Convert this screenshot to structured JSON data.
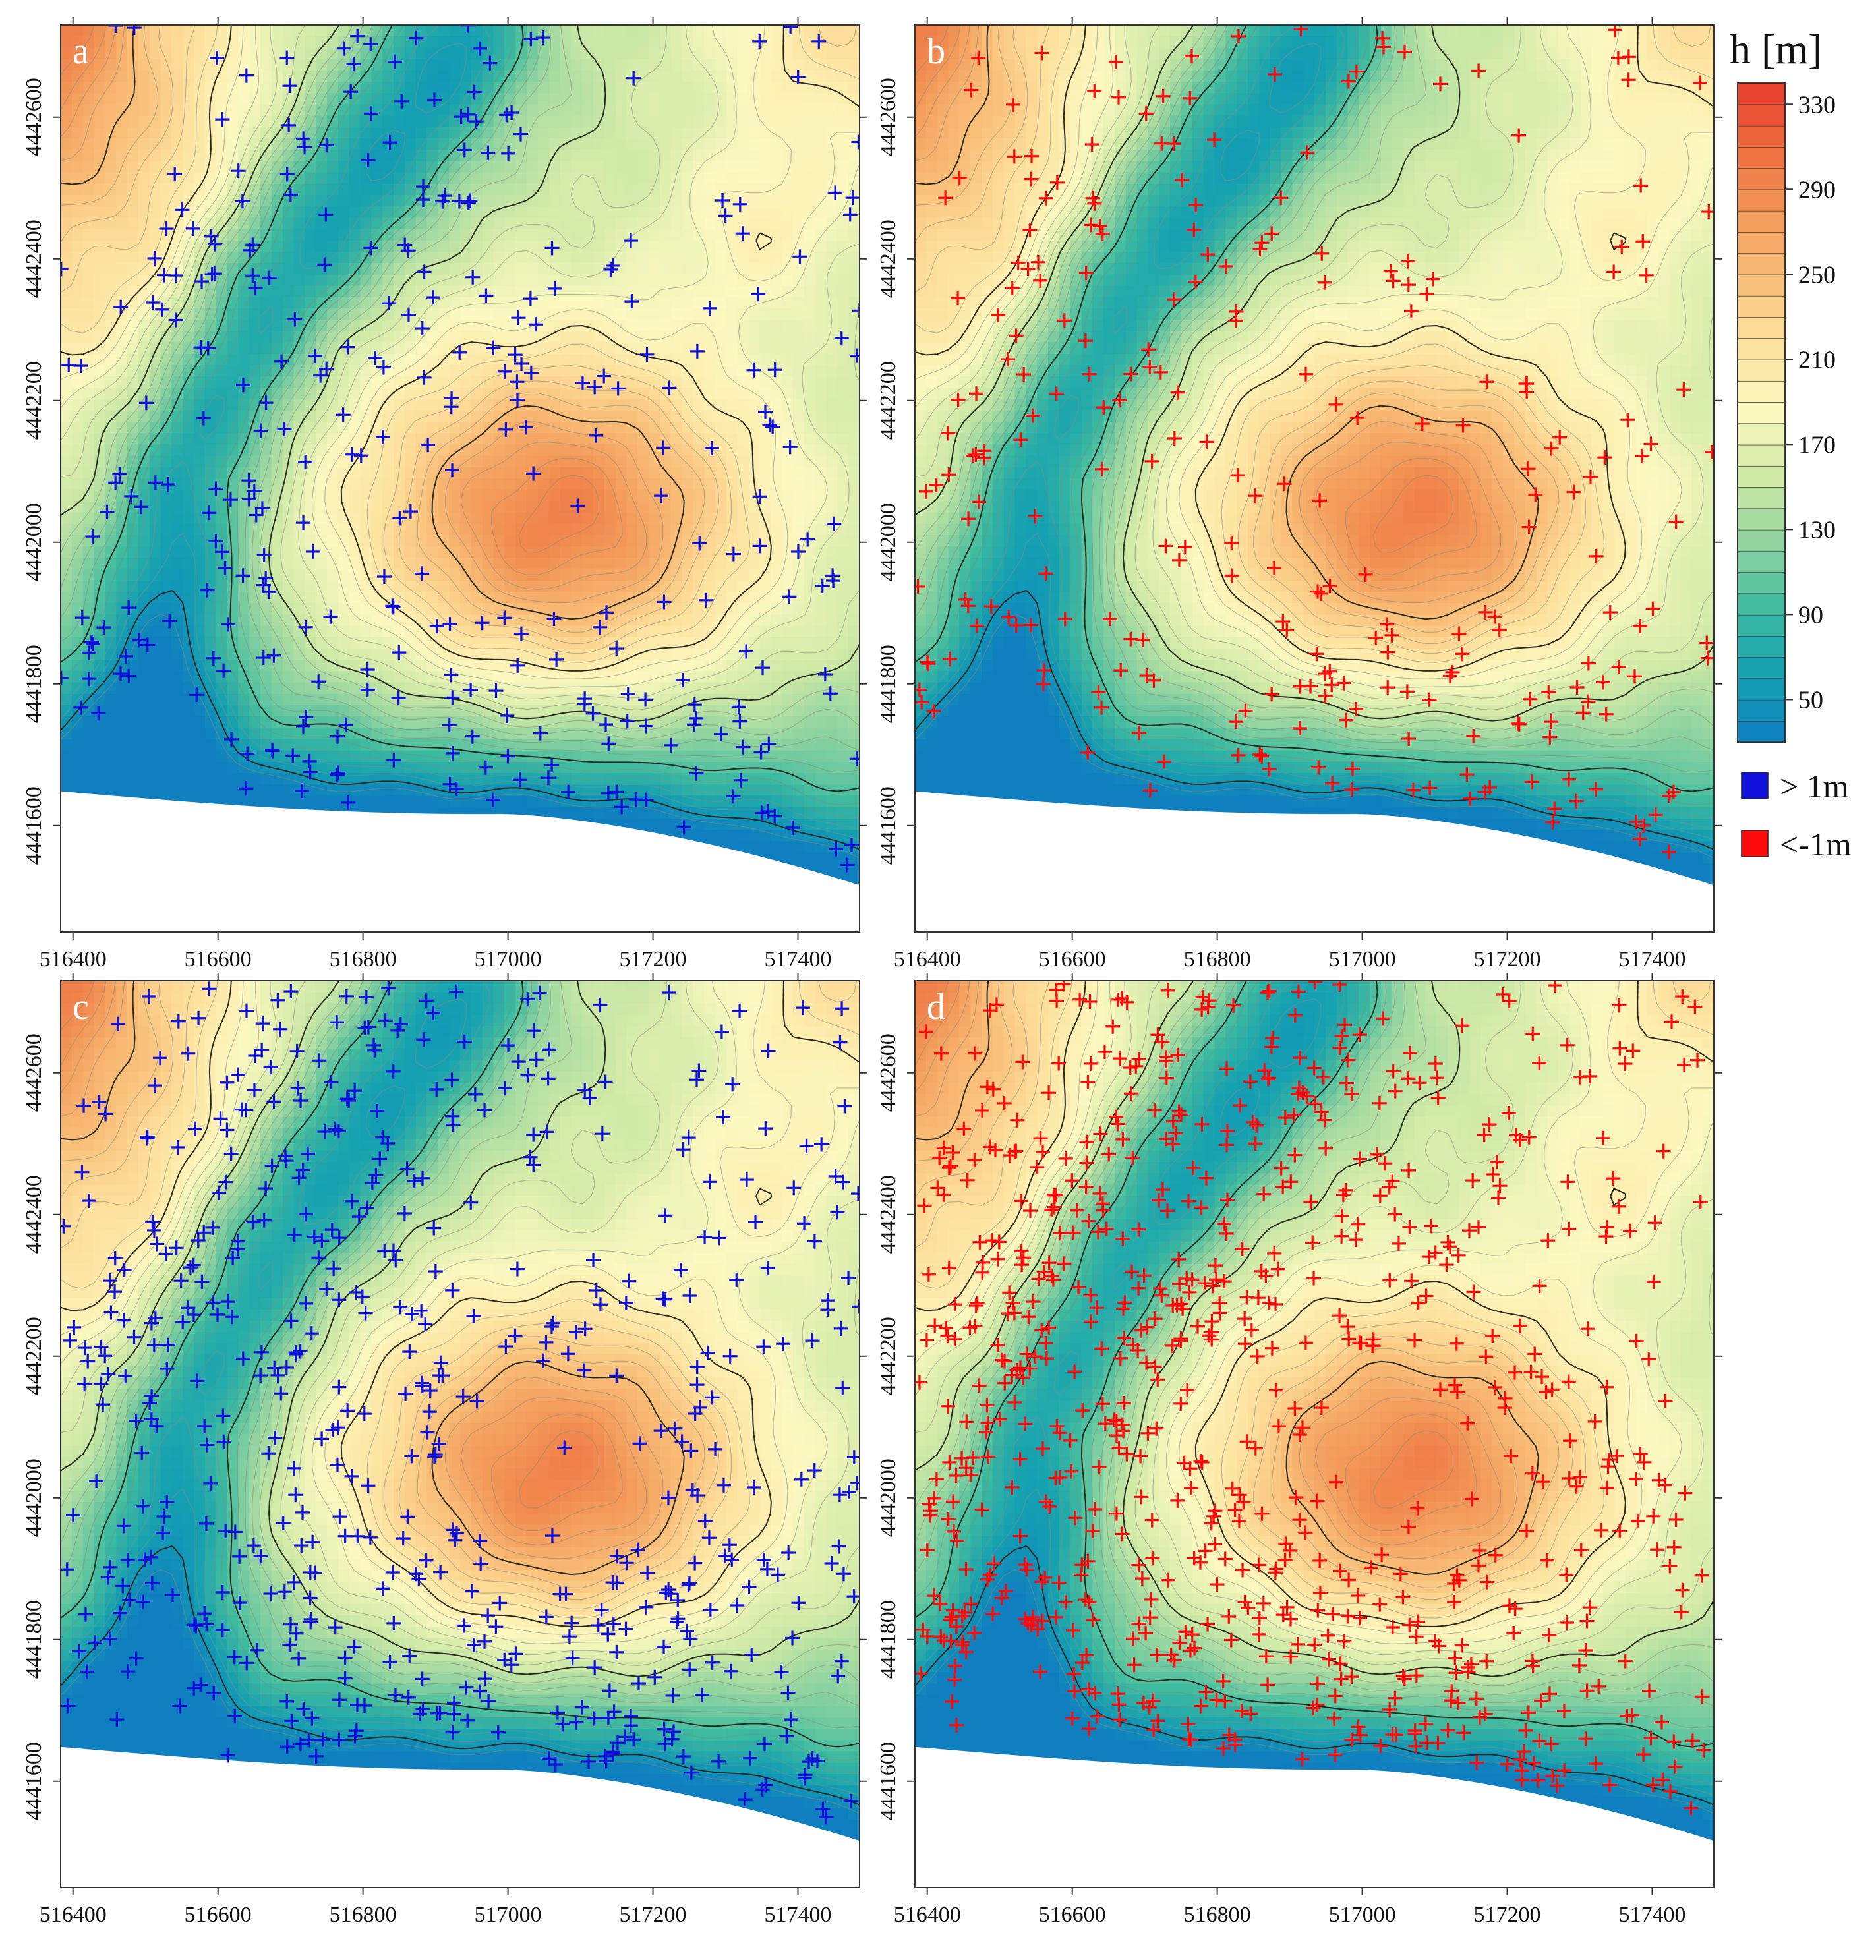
{
  "figure": {
    "panels": [
      {
        "letter": "a",
        "marker_color": "#1010dd",
        "seed": 11,
        "count": 330
      },
      {
        "letter": "b",
        "marker_color": "#ff0a0a",
        "seed": 23,
        "count": 260
      },
      {
        "letter": "c",
        "marker_color": "#1010dd",
        "seed": 37,
        "count": 560
      },
      {
        "letter": "d",
        "marker_color": "#ff0a0a",
        "seed": 53,
        "count": 760
      }
    ],
    "x_ticks": [
      "516400",
      "516600",
      "516800",
      "517000",
      "517200",
      "517400"
    ],
    "y_ticks": [
      "4441600",
      "4441800",
      "4442000",
      "4442200",
      "4442400",
      "4442600"
    ],
    "x_tick_values": [
      516400,
      516600,
      516800,
      517000,
      517200,
      517400
    ],
    "y_tick_values": [
      4441600,
      4441800,
      4442000,
      4442200,
      4442400,
      4442600
    ],
    "x_range": [
      516383,
      517485
    ],
    "y_range": [
      4441450,
      4442730
    ],
    "legend": {
      "title": "h [m]",
      "ticks": [
        "330",
        "290",
        "250",
        "210",
        "170",
        "130",
        "90",
        "50"
      ],
      "tick_values": [
        330,
        290,
        250,
        210,
        170,
        130,
        90,
        50
      ],
      "range": [
        30,
        340
      ],
      "colors": [
        "#0f7fc0",
        "#14a0b2",
        "#3cbaa0",
        "#8fd3a0",
        "#cfe9a6",
        "#fbf8c0",
        "#fde3a0",
        "#f9c07a",
        "#f39a5a",
        "#ee6e3e",
        "#e8392a"
      ],
      "symbols": [
        {
          "color": "#1010dd",
          "label": "> 1m"
        },
        {
          "color": "#ff0a0a",
          "label": "<-1m"
        }
      ]
    }
  }
}
